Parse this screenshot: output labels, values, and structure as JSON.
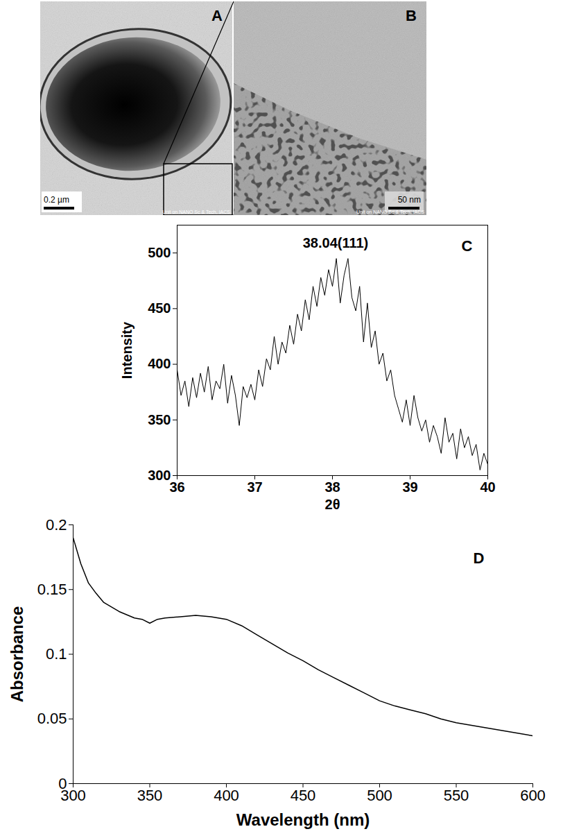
{
  "chart_data": [
    {
      "type": "image",
      "panel": "A",
      "scale_bar": "0.2 µm",
      "caption": "Unit on NANO Sc & Tech, IACS"
    },
    {
      "type": "image",
      "panel": "B",
      "scale_bar": "50 nm",
      "caption": "Unit on NANO Sc & Tech, IACS"
    },
    {
      "type": "line",
      "panel": "C",
      "x_label": "2θ",
      "y_label": "Intensity",
      "color": "#000000",
      "xlim": [
        36,
        40
      ],
      "xticks": [
        36,
        37,
        38,
        39,
        40
      ],
      "ylim": [
        300,
        525
      ],
      "yticks": [
        300,
        350,
        400,
        450,
        500
      ],
      "annotations": [
        {
          "text": "38.04(111)",
          "x": 38.04,
          "y": 505
        }
      ],
      "x": [
        36.0,
        36.05,
        36.1,
        36.15,
        36.2,
        36.25,
        36.3,
        36.35,
        36.4,
        36.45,
        36.5,
        36.55,
        36.6,
        36.65,
        36.7,
        36.75,
        36.8,
        36.85,
        36.9,
        36.95,
        37.0,
        37.05,
        37.1,
        37.15,
        37.2,
        37.25,
        37.3,
        37.35,
        37.4,
        37.45,
        37.5,
        37.55,
        37.6,
        37.65,
        37.7,
        37.75,
        37.8,
        37.85,
        37.9,
        37.95,
        38.0,
        38.05,
        38.1,
        38.15,
        38.2,
        38.25,
        38.3,
        38.35,
        38.4,
        38.45,
        38.5,
        38.55,
        38.6,
        38.65,
        38.7,
        38.75,
        38.8,
        38.85,
        38.9,
        38.95,
        39.0,
        39.05,
        39.1,
        39.15,
        39.2,
        39.25,
        39.3,
        39.35,
        39.4,
        39.45,
        39.5,
        39.55,
        39.6,
        39.65,
        39.7,
        39.75,
        39.8,
        39.85,
        39.9,
        39.95,
        40.0
      ],
      "values": [
        395,
        372,
        385,
        362,
        388,
        370,
        392,
        375,
        398,
        368,
        385,
        378,
        400,
        365,
        390,
        372,
        345,
        380,
        370,
        382,
        368,
        395,
        380,
        405,
        395,
        425,
        400,
        420,
        410,
        435,
        418,
        445,
        430,
        458,
        440,
        470,
        452,
        478,
        462,
        485,
        470,
        495,
        455,
        480,
        495,
        460,
        448,
        470,
        420,
        455,
        415,
        430,
        400,
        410,
        385,
        395,
        372,
        360,
        348,
        368,
        345,
        372,
        352,
        340,
        350,
        330,
        345,
        335,
        320,
        352,
        330,
        338,
        315,
        342,
        325,
        335,
        318,
        328,
        305,
        320,
        310
      ]
    },
    {
      "type": "line",
      "panel": "D",
      "x_label": "Wavelength (nm)",
      "y_label": "Absorbance",
      "color": "#000000",
      "xlim": [
        300,
        600
      ],
      "xticks": [
        300,
        350,
        400,
        450,
        500,
        550,
        600
      ],
      "ylim": [
        0,
        0.2
      ],
      "yticks": [
        0,
        0.05,
        0.1,
        0.15,
        0.2
      ],
      "x": [
        300,
        305,
        310,
        315,
        320,
        330,
        340,
        345,
        350,
        355,
        360,
        370,
        380,
        390,
        400,
        410,
        420,
        430,
        440,
        450,
        460,
        470,
        480,
        490,
        500,
        510,
        520,
        530,
        540,
        550,
        560,
        570,
        580,
        590,
        600
      ],
      "values": [
        0.19,
        0.17,
        0.155,
        0.147,
        0.14,
        0.133,
        0.128,
        0.127,
        0.124,
        0.127,
        0.128,
        0.129,
        0.13,
        0.129,
        0.127,
        0.122,
        0.115,
        0.108,
        0.101,
        0.095,
        0.088,
        0.082,
        0.076,
        0.07,
        0.064,
        0.06,
        0.057,
        0.054,
        0.05,
        0.047,
        0.045,
        0.043,
        0.041,
        0.039,
        0.037
      ]
    }
  ]
}
